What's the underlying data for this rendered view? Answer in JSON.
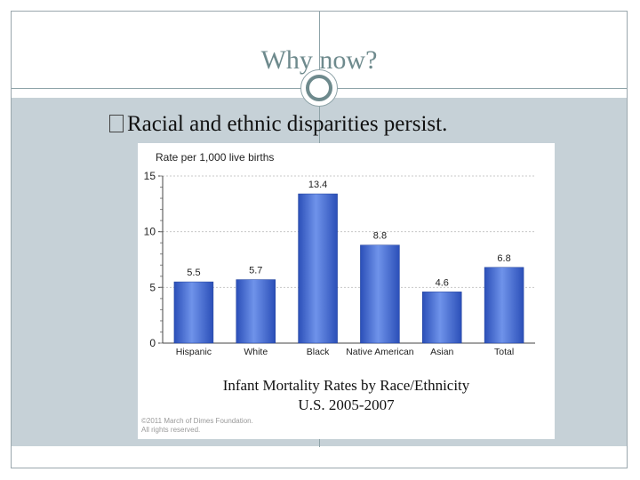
{
  "slide": {
    "title": "Why now?",
    "bullet": "Racial and ethnic disparities persist."
  },
  "chart_data": {
    "type": "bar",
    "title": "Rate per 1,000 live births",
    "categories": [
      "Hispanic",
      "White",
      "Black",
      "Native American",
      "Asian",
      "Total"
    ],
    "values": [
      5.5,
      5.7,
      13.4,
      8.8,
      4.6,
      6.8
    ],
    "value_labels": [
      "5.5",
      "5.7",
      "13.4",
      "8.8",
      "4.6",
      "6.8"
    ],
    "yticks": [
      0,
      5,
      10,
      15
    ],
    "ylim": [
      0,
      15
    ],
    "grid": true,
    "bar_color": "#3d66d6"
  },
  "caption": {
    "line1": "Infant Mortality Rates by Race/Ethnicity",
    "line2": "U.S. 2005-2007"
  },
  "copyright": {
    "line1": "©2011 March of Dimes Foundation.",
    "line2": "All rights reserved."
  }
}
